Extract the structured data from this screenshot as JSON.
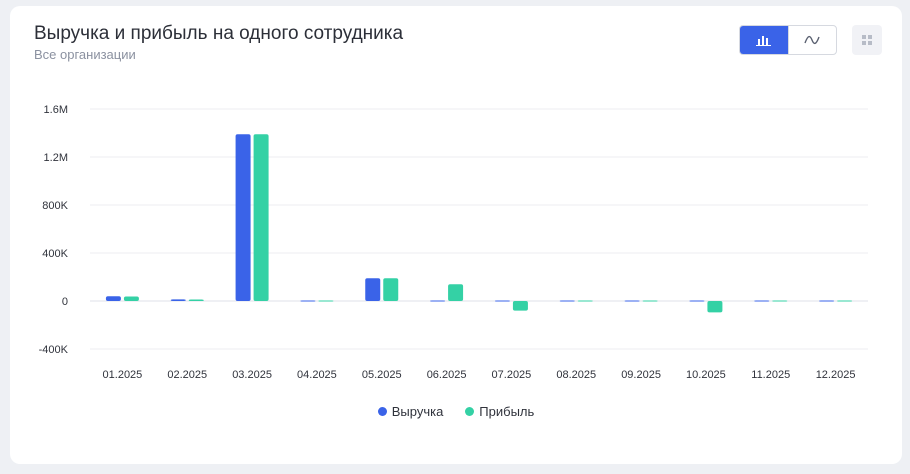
{
  "header": {
    "title": "Выручка и прибыль на одного сотрудника",
    "subtitle": "Все организации"
  },
  "controls": {
    "active_view": "bar",
    "bar_icon": "bar-chart-icon",
    "line_icon": "line-chart-icon",
    "grid_icon": "grid-icon"
  },
  "chart_data": {
    "type": "bar",
    "categories": [
      "01.2025",
      "02.2025",
      "03.2025",
      "04.2025",
      "05.2025",
      "06.2025",
      "07.2025",
      "08.2025",
      "09.2025",
      "10.2025",
      "11.2025",
      "12.2025"
    ],
    "series": [
      {
        "name": "Выручка",
        "color": "#3a63e8",
        "values": [
          40000,
          14000,
          1390000,
          0,
          190000,
          0,
          0,
          0,
          0,
          0,
          0,
          0
        ]
      },
      {
        "name": "Прибыль",
        "color": "#34d1a5",
        "values": [
          38000,
          13000,
          1390000,
          0,
          190000,
          140000,
          -80000,
          0,
          0,
          -95000,
          0,
          0
        ]
      }
    ],
    "yticks": [
      1600000,
      1200000,
      800000,
      400000,
      0,
      -400000
    ],
    "ytick_labels": [
      "1.6M",
      "1.2M",
      "800K",
      "400K",
      "0",
      "-400K"
    ],
    "ylim": [
      -400000,
      1600000
    ],
    "grid": true,
    "legend_position": "bottom-center"
  }
}
